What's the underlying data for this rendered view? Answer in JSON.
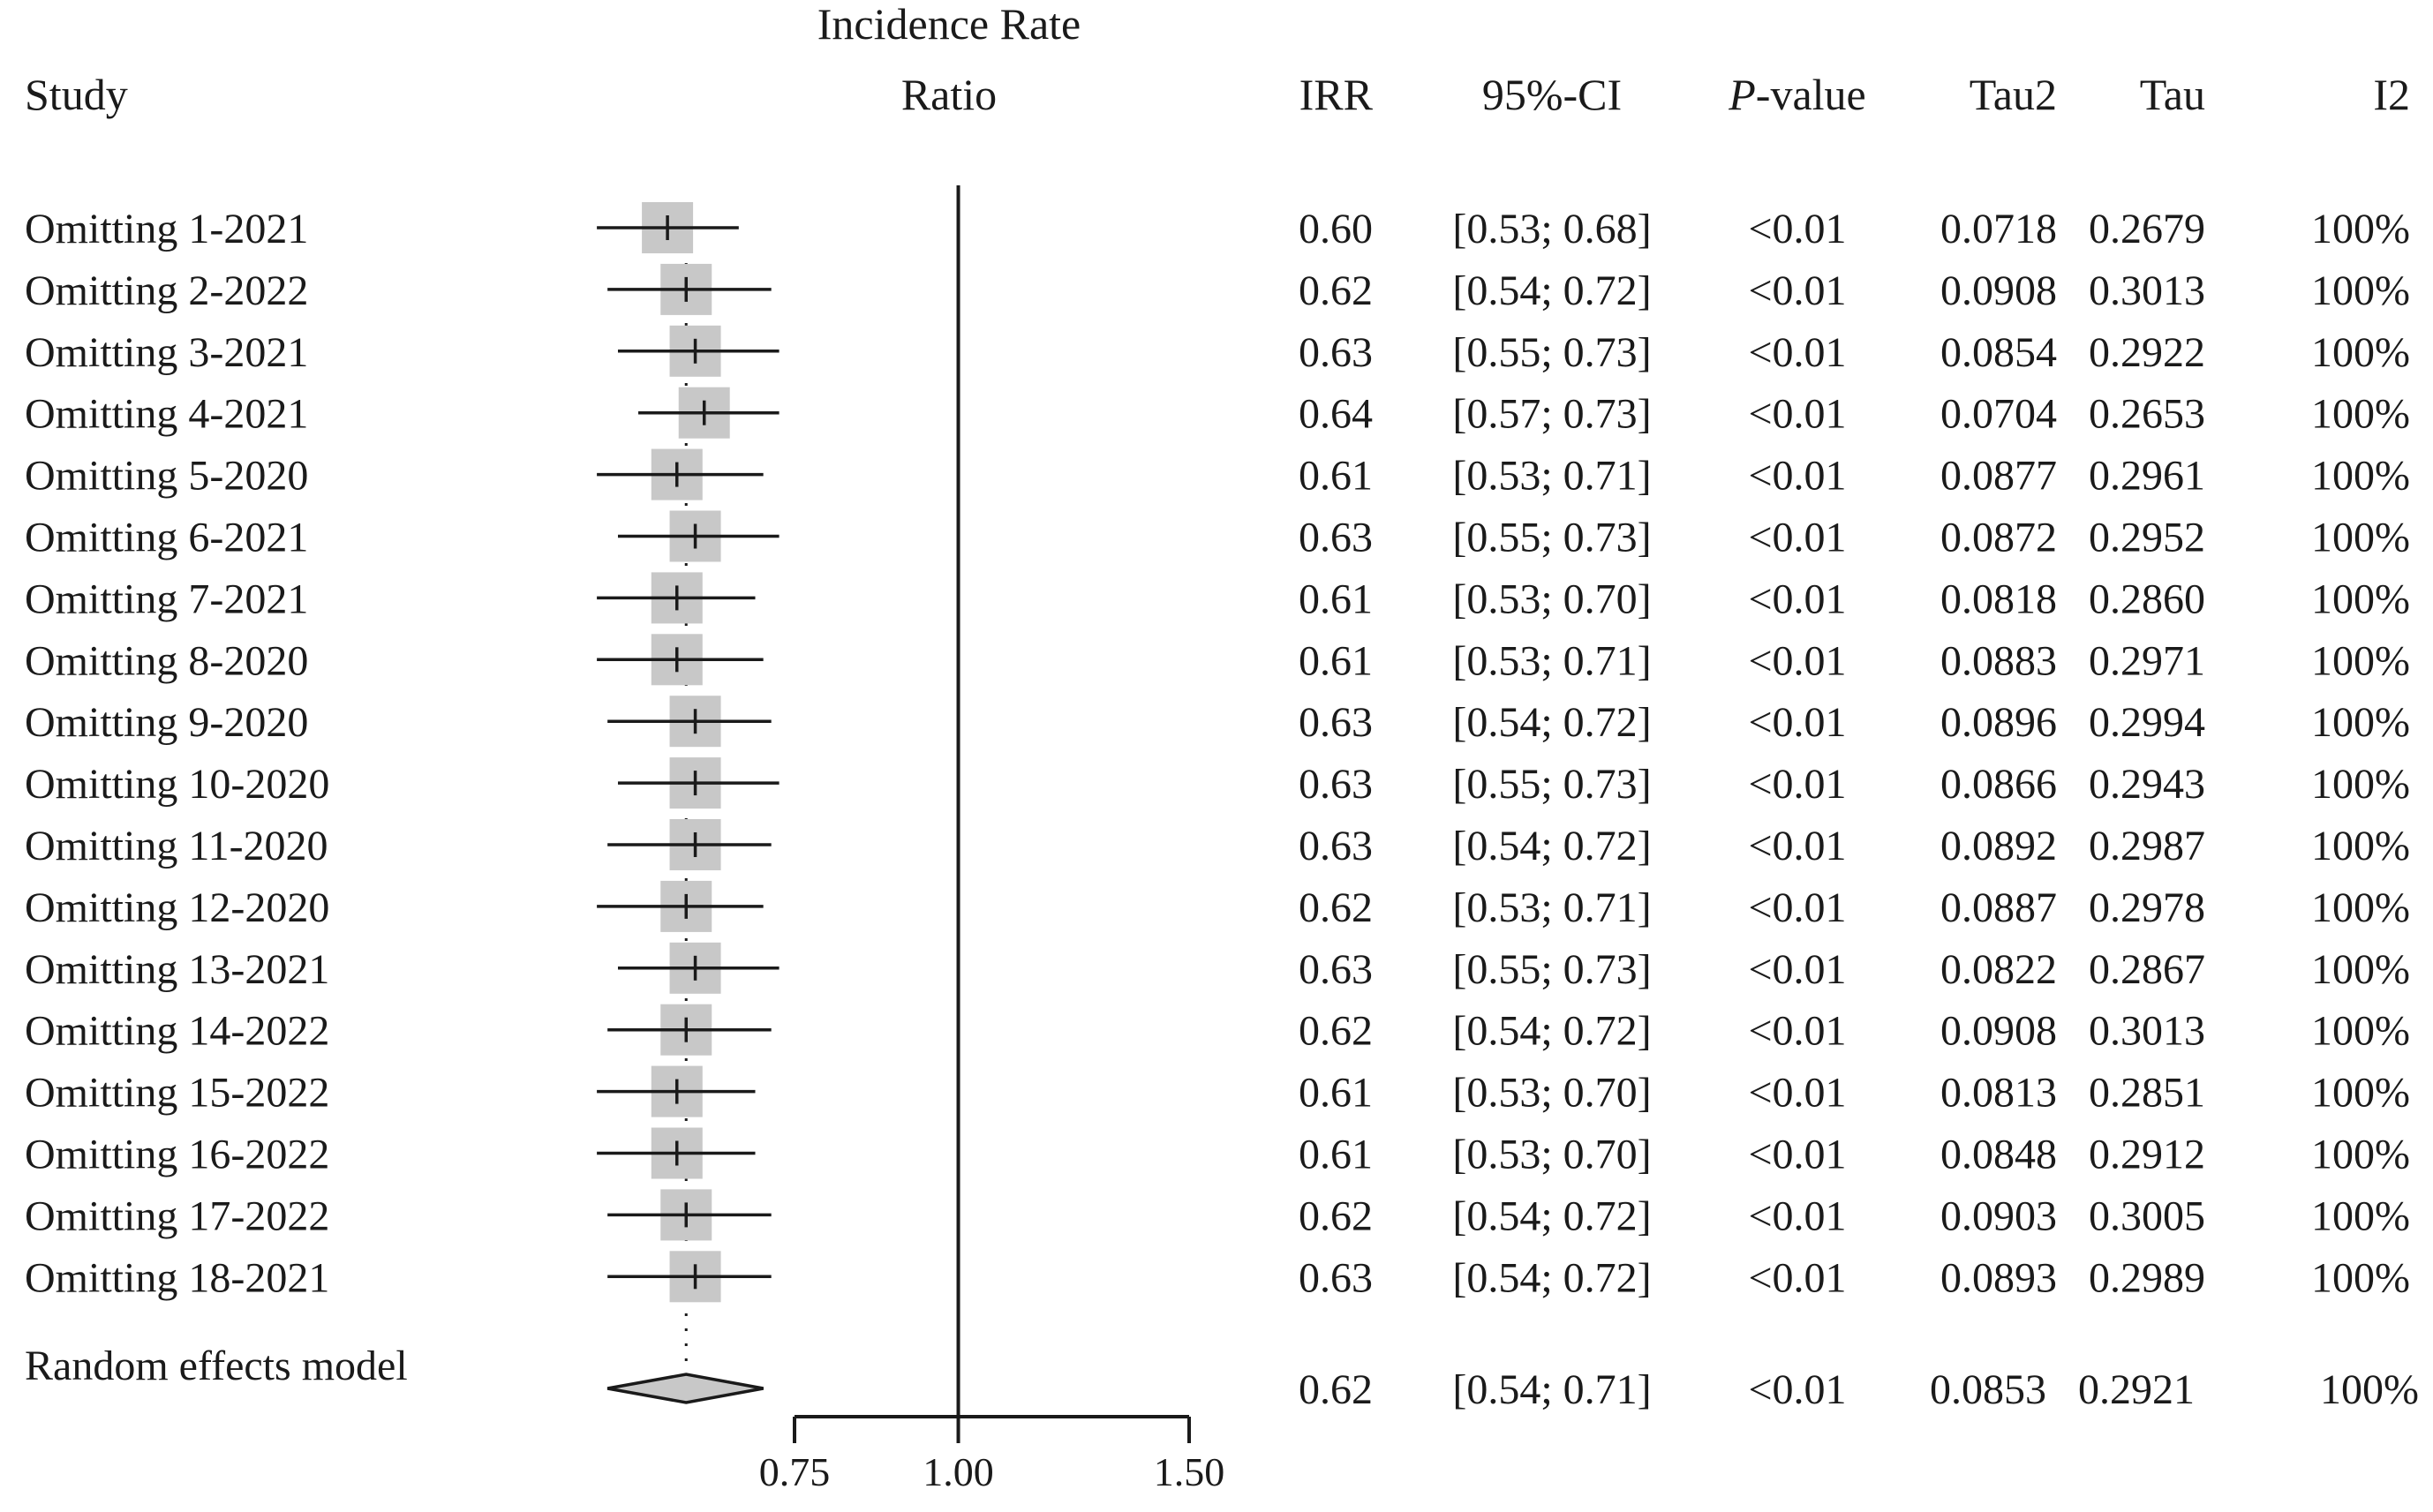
{
  "chart_data": {
    "type": "forest",
    "plot_title_line1": "Incidence Rate",
    "plot_title_line2": "Ratio",
    "scale": "log",
    "xlim": [
      0.75,
      1.5
    ],
    "reference_line": 1.0,
    "x_ticks": [
      {
        "value": 0.75,
        "label": "0.75"
      },
      {
        "value": 1.0,
        "label": "1.00"
      },
      {
        "value": 1.5,
        "label": "1.50"
      }
    ],
    "columns": {
      "study": "Study",
      "irr": "IRR",
      "ci": "95%-CI",
      "pvalue_italic": "P",
      "pvalue_rest": "-value",
      "tau2": "Tau2",
      "tau": "Tau",
      "i2": "I2"
    },
    "studies": [
      {
        "label": "Omitting 1-2021",
        "irr": "0.60",
        "ci": "[0.53; 0.68]",
        "p": "<0.01",
        "tau2": "0.0718",
        "tau": "0.2679",
        "i2": "100%",
        "est": 0.6,
        "lo": 0.53,
        "hi": 0.68
      },
      {
        "label": "Omitting 2-2022",
        "irr": "0.62",
        "ci": "[0.54; 0.72]",
        "p": "<0.01",
        "tau2": "0.0908",
        "tau": "0.3013",
        "i2": "100%",
        "est": 0.62,
        "lo": 0.54,
        "hi": 0.72
      },
      {
        "label": "Omitting 3-2021",
        "irr": "0.63",
        "ci": "[0.55; 0.73]",
        "p": "<0.01",
        "tau2": "0.0854",
        "tau": "0.2922",
        "i2": "100%",
        "est": 0.63,
        "lo": 0.55,
        "hi": 0.73
      },
      {
        "label": "Omitting 4-2021",
        "irr": "0.64",
        "ci": "[0.57; 0.73]",
        "p": "<0.01",
        "tau2": "0.0704",
        "tau": "0.2653",
        "i2": "100%",
        "est": 0.64,
        "lo": 0.57,
        "hi": 0.73
      },
      {
        "label": "Omitting 5-2020",
        "irr": "0.61",
        "ci": "[0.53; 0.71]",
        "p": "<0.01",
        "tau2": "0.0877",
        "tau": "0.2961",
        "i2": "100%",
        "est": 0.61,
        "lo": 0.53,
        "hi": 0.71
      },
      {
        "label": "Omitting 6-2021",
        "irr": "0.63",
        "ci": "[0.55; 0.73]",
        "p": "<0.01",
        "tau2": "0.0872",
        "tau": "0.2952",
        "i2": "100%",
        "est": 0.63,
        "lo": 0.55,
        "hi": 0.73
      },
      {
        "label": "Omitting 7-2021",
        "irr": "0.61",
        "ci": "[0.53; 0.70]",
        "p": "<0.01",
        "tau2": "0.0818",
        "tau": "0.2860",
        "i2": "100%",
        "est": 0.61,
        "lo": 0.53,
        "hi": 0.7
      },
      {
        "label": "Omitting 8-2020",
        "irr": "0.61",
        "ci": "[0.53; 0.71]",
        "p": "<0.01",
        "tau2": "0.0883",
        "tau": "0.2971",
        "i2": "100%",
        "est": 0.61,
        "lo": 0.53,
        "hi": 0.71
      },
      {
        "label": "Omitting 9-2020",
        "irr": "0.63",
        "ci": "[0.54; 0.72]",
        "p": "<0.01",
        "tau2": "0.0896",
        "tau": "0.2994",
        "i2": "100%",
        "est": 0.63,
        "lo": 0.54,
        "hi": 0.72
      },
      {
        "label": "Omitting 10-2020",
        "irr": "0.63",
        "ci": "[0.55; 0.73]",
        "p": "<0.01",
        "tau2": "0.0866",
        "tau": "0.2943",
        "i2": "100%",
        "est": 0.63,
        "lo": 0.55,
        "hi": 0.73
      },
      {
        "label": "Omitting 11-2020",
        "irr": "0.63",
        "ci": "[0.54; 0.72]",
        "p": "<0.01",
        "tau2": "0.0892",
        "tau": "0.2987",
        "i2": "100%",
        "est": 0.63,
        "lo": 0.54,
        "hi": 0.72
      },
      {
        "label": "Omitting 12-2020",
        "irr": "0.62",
        "ci": "[0.53; 0.71]",
        "p": "<0.01",
        "tau2": "0.0887",
        "tau": "0.2978",
        "i2": "100%",
        "est": 0.62,
        "lo": 0.53,
        "hi": 0.71
      },
      {
        "label": "Omitting 13-2021",
        "irr": "0.63",
        "ci": "[0.55; 0.73]",
        "p": "<0.01",
        "tau2": "0.0822",
        "tau": "0.2867",
        "i2": "100%",
        "est": 0.63,
        "lo": 0.55,
        "hi": 0.73
      },
      {
        "label": "Omitting 14-2022",
        "irr": "0.62",
        "ci": "[0.54; 0.72]",
        "p": "<0.01",
        "tau2": "0.0908",
        "tau": "0.3013",
        "i2": "100%",
        "est": 0.62,
        "lo": 0.54,
        "hi": 0.72
      },
      {
        "label": "Omitting 15-2022",
        "irr": "0.61",
        "ci": "[0.53; 0.70]",
        "p": "<0.01",
        "tau2": "0.0813",
        "tau": "0.2851",
        "i2": "100%",
        "est": 0.61,
        "lo": 0.53,
        "hi": 0.7
      },
      {
        "label": "Omitting 16-2022",
        "irr": "0.61",
        "ci": "[0.53; 0.70]",
        "p": "<0.01",
        "tau2": "0.0848",
        "tau": "0.2912",
        "i2": "100%",
        "est": 0.61,
        "lo": 0.53,
        "hi": 0.7
      },
      {
        "label": "Omitting 17-2022",
        "irr": "0.62",
        "ci": "[0.54; 0.72]",
        "p": "<0.01",
        "tau2": "0.0903",
        "tau": "0.3005",
        "i2": "100%",
        "est": 0.62,
        "lo": 0.54,
        "hi": 0.72
      },
      {
        "label": "Omitting 18-2021",
        "irr": "0.63",
        "ci": "[0.54; 0.72]",
        "p": "<0.01",
        "tau2": "0.0893",
        "tau": "0.2989",
        "i2": "100%",
        "est": 0.63,
        "lo": 0.54,
        "hi": 0.72
      }
    ],
    "summary": {
      "label": "Random effects model",
      "irr": "0.62",
      "ci": "[0.54; 0.71]",
      "p": "<0.01",
      "tau2": "0.0853",
      "tau": "0.2921",
      "i2": "100%",
      "est": 0.62,
      "lo": 0.54,
      "hi": 0.71
    },
    "colors": {
      "box": "#c8c8c8",
      "diamond": "#c8c8c8",
      "line": "#1a1a1a"
    }
  }
}
